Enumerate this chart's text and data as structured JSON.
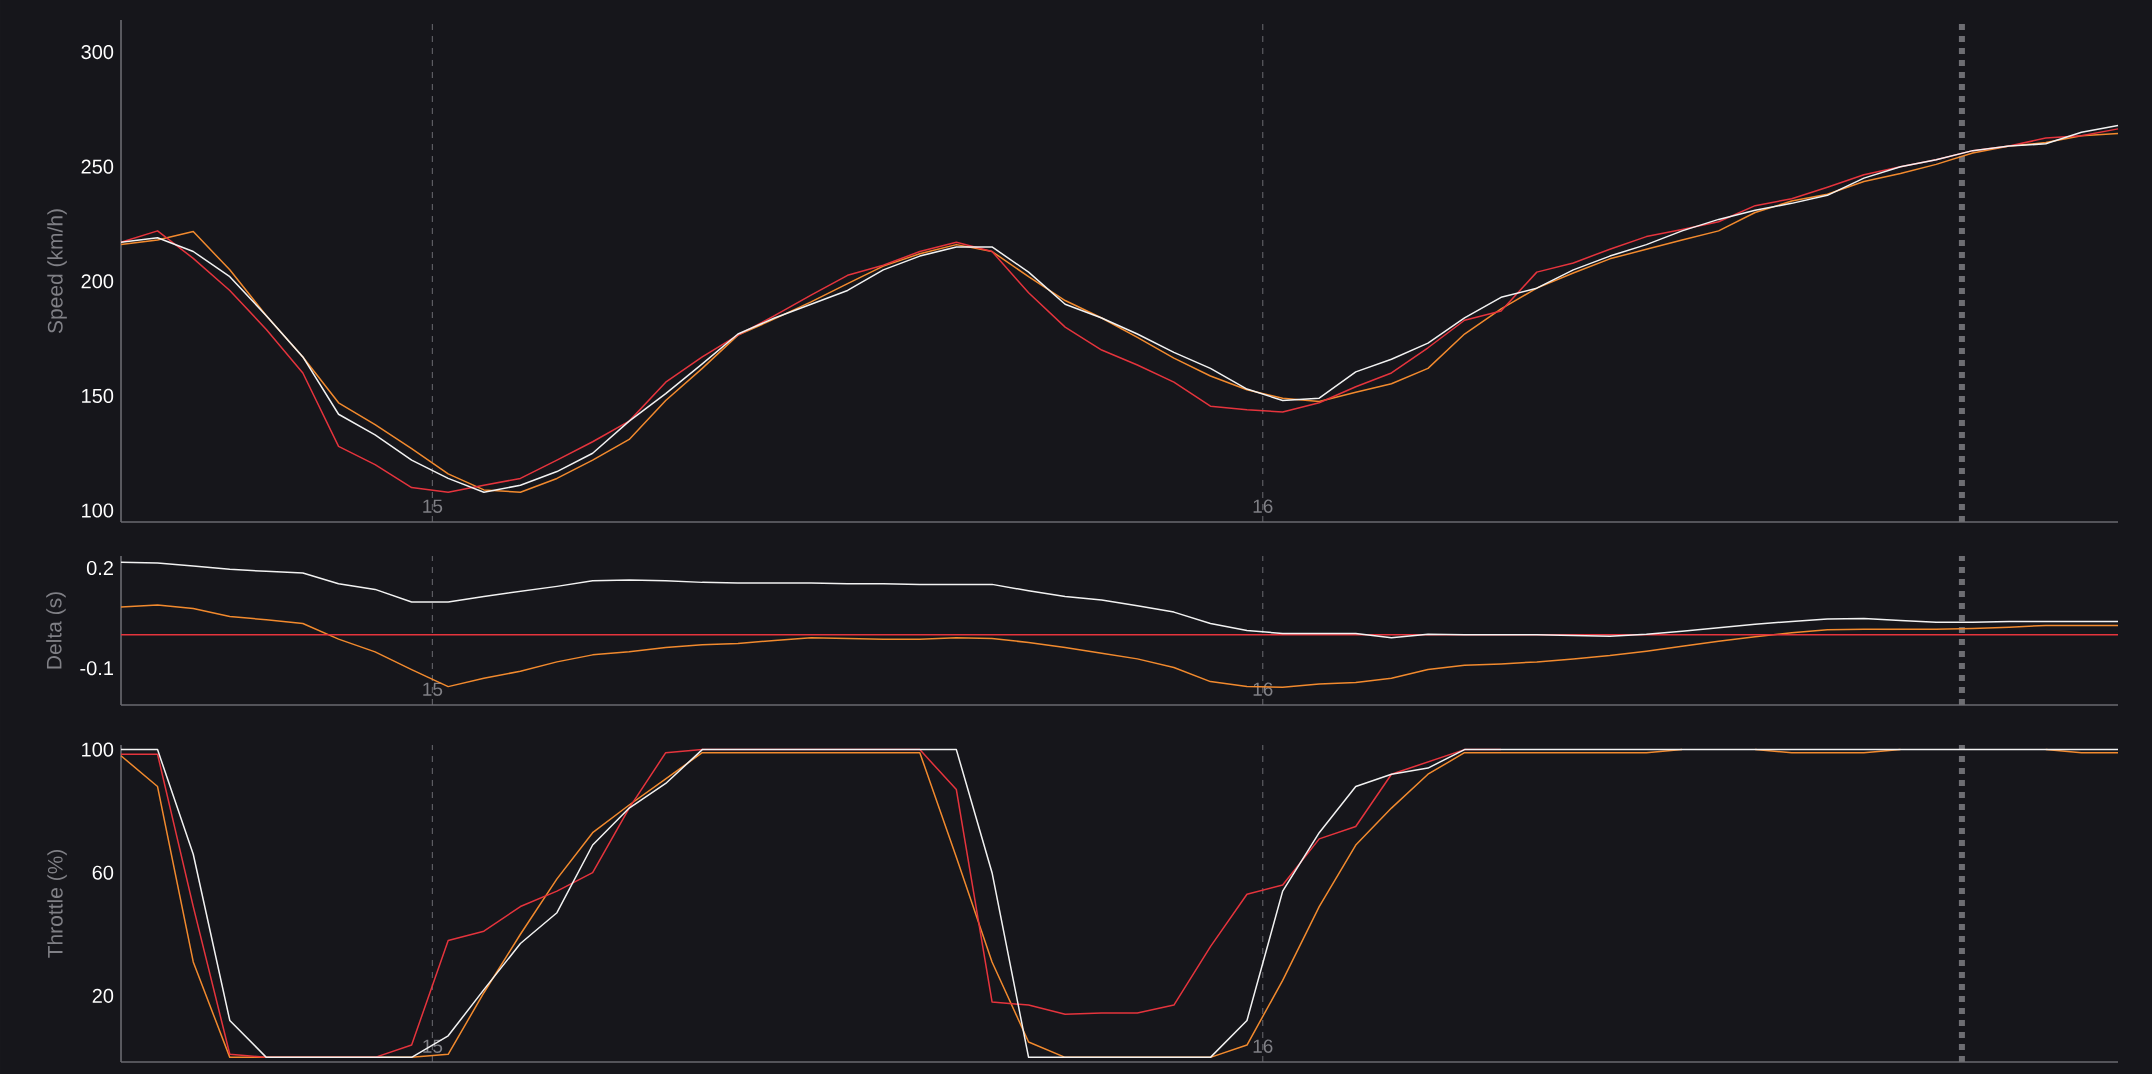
{
  "chart_data": [
    {
      "type": "line",
      "ylabel": "Speed (km/h)",
      "x": [
        14.625,
        14.669,
        14.712,
        14.756,
        14.8,
        14.844,
        14.887,
        14.931,
        14.975,
        15.019,
        15.062,
        15.106,
        15.15,
        15.193,
        15.237,
        15.281,
        15.325,
        15.368,
        15.412,
        15.456,
        15.5,
        15.543,
        15.587,
        15.631,
        15.674,
        15.718,
        15.762,
        15.806,
        15.849,
        15.893,
        15.937,
        15.981,
        16.024,
        16.068,
        16.112,
        16.155,
        16.199,
        16.243,
        16.287,
        16.33,
        16.374,
        16.418,
        16.462,
        16.505,
        16.549,
        16.593,
        16.637,
        16.68,
        16.724,
        16.768,
        16.811,
        16.855,
        16.899,
        16.943,
        16.986,
        17.03
      ],
      "xlim": [
        14.625,
        17.03
      ],
      "xticks": [
        15,
        16
      ],
      "grid": "x",
      "ylim": [
        95,
        314
      ],
      "yticks": [
        100,
        150,
        200,
        250,
        300
      ],
      "series": [
        {
          "color": "#f28a2e",
          "values": [
            216,
            218,
            221.7,
            205,
            185,
            167,
            147,
            137.5,
            127,
            116,
            109,
            108,
            114,
            122,
            131,
            148,
            162,
            176.5,
            183.6,
            191,
            199,
            206.6,
            212,
            216,
            213,
            202,
            191.6,
            184,
            175.5,
            166.5,
            158.7,
            152.7,
            149,
            147.6,
            151.6,
            155.3,
            162,
            177,
            188,
            197,
            203.6,
            209.8,
            214,
            218,
            222,
            230,
            235,
            238,
            243.5,
            247,
            251,
            256,
            259,
            260.5,
            263.5,
            264.5
          ]
        },
        {
          "color": "#e5343d",
          "values": [
            217,
            222,
            210,
            196,
            179,
            160,
            128,
            120,
            110,
            108,
            111,
            114,
            122,
            130,
            139,
            156,
            167,
            176.5,
            185,
            194,
            202.6,
            207,
            213,
            217,
            213,
            195,
            180,
            170,
            163.5,
            156,
            145.5,
            144,
            143,
            147,
            154,
            160,
            171,
            183,
            187,
            204,
            208,
            214,
            219.5,
            222.6,
            226,
            233,
            236,
            241,
            246.5,
            250,
            253,
            257,
            259,
            262.5,
            263.5,
            266.5
          ]
        },
        {
          "color": "#f2f2f2",
          "values": [
            217,
            219,
            213,
            202,
            185,
            167,
            142,
            133,
            122,
            114,
            108,
            111,
            117,
            125,
            139,
            151,
            164,
            177,
            184,
            190,
            196,
            205,
            211,
            215,
            215,
            204,
            190,
            184,
            177,
            169,
            162,
            153,
            148,
            149,
            160.5,
            166,
            173,
            184,
            193,
            197,
            205,
            211,
            216,
            222,
            227,
            231,
            234,
            237.5,
            245,
            250,
            253,
            257,
            259,
            260,
            265,
            268
          ]
        }
      ],
      "ref_lines": [
        {
          "axis": "x",
          "value": 16.842,
          "color": "#6e6e73",
          "line_style": "dotted"
        }
      ]
    },
    {
      "type": "line",
      "ylabel": "Delta (s)",
      "x": [
        14.625,
        14.669,
        14.712,
        14.756,
        14.8,
        14.844,
        14.887,
        14.931,
        14.975,
        15.019,
        15.062,
        15.106,
        15.15,
        15.193,
        15.237,
        15.281,
        15.325,
        15.368,
        15.412,
        15.456,
        15.5,
        15.543,
        15.587,
        15.631,
        15.674,
        15.718,
        15.762,
        15.806,
        15.849,
        15.893,
        15.937,
        15.981,
        16.024,
        16.068,
        16.112,
        16.155,
        16.199,
        16.243,
        16.287,
        16.33,
        16.374,
        16.418,
        16.462,
        16.505,
        16.549,
        16.593,
        16.637,
        16.68,
        16.724,
        16.768,
        16.811,
        16.855,
        16.899,
        16.943,
        16.986,
        17.03
      ],
      "xlim": [
        14.625,
        17.03
      ],
      "xticks": [
        15,
        16
      ],
      "grid": "x",
      "ylim": [
        -0.21,
        0.236
      ],
      "yticks": [
        -0.1,
        0.2
      ],
      "series": [
        {
          "color": "#f28a2e",
          "values": [
            0.083,
            0.089,
            0.079,
            0.055,
            0.045,
            0.034,
            -0.013,
            -0.051,
            -0.104,
            -0.155,
            -0.13,
            -0.109,
            -0.081,
            -0.06,
            -0.051,
            -0.038,
            -0.03,
            -0.026,
            -0.017,
            -0.009,
            -0.011,
            -0.013,
            -0.013,
            -0.009,
            -0.011,
            -0.023,
            -0.038,
            -0.055,
            -0.072,
            -0.098,
            -0.14,
            -0.155,
            -0.157,
            -0.147,
            -0.143,
            -0.13,
            -0.104,
            -0.091,
            -0.087,
            -0.081,
            -0.072,
            -0.062,
            -0.049,
            -0.034,
            -0.019,
            -0.006,
            0.006,
            0.015,
            0.017,
            0.017,
            0.017,
            0.019,
            0.023,
            0.028,
            0.028,
            0.028
          ]
        },
        {
          "color": "#e5343d",
          "values": [
            0,
            0,
            0,
            0,
            0,
            0,
            0,
            0,
            0,
            0,
            0,
            0,
            0,
            0,
            0,
            0,
            0,
            0,
            0,
            0,
            0,
            0,
            0,
            0,
            0,
            0,
            0,
            0,
            0,
            0,
            0,
            0,
            0,
            0,
            0,
            0,
            0,
            0,
            0,
            0,
            0,
            0,
            0,
            0,
            0,
            0,
            0,
            0,
            0,
            0,
            0,
            0,
            0,
            0,
            0,
            0
          ]
        },
        {
          "color": "#f2f2f2",
          "values": [
            0.217,
            0.215,
            0.206,
            0.196,
            0.19,
            0.185,
            0.153,
            0.136,
            0.098,
            0.098,
            0.115,
            0.13,
            0.145,
            0.162,
            0.164,
            0.162,
            0.157,
            0.155,
            0.155,
            0.155,
            0.153,
            0.153,
            0.151,
            0.151,
            0.151,
            0.132,
            0.115,
            0.104,
            0.087,
            0.068,
            0.034,
            0.013,
            0.004,
            0.004,
            0.004,
            -0.009,
            0.002,
            0,
            0,
            0,
            -0.002,
            -0.004,
            0.002,
            0.011,
            0.021,
            0.032,
            0.04,
            0.047,
            0.049,
            0.043,
            0.038,
            0.038,
            0.04,
            0.04,
            0.04,
            0.04
          ]
        }
      ],
      "ref_lines": [
        {
          "axis": "x",
          "value": 16.842,
          "color": "#6e6e73",
          "line_style": "dotted"
        }
      ]
    },
    {
      "type": "line",
      "ylabel": "Throttle (%)",
      "x": [
        14.625,
        14.669,
        14.712,
        14.756,
        14.8,
        14.844,
        14.887,
        14.931,
        14.975,
        15.019,
        15.062,
        15.106,
        15.15,
        15.193,
        15.237,
        15.281,
        15.325,
        15.368,
        15.412,
        15.456,
        15.5,
        15.543,
        15.587,
        15.631,
        15.674,
        15.718,
        15.762,
        15.806,
        15.849,
        15.893,
        15.937,
        15.981,
        16.024,
        16.068,
        16.112,
        16.155,
        16.199,
        16.243,
        16.287,
        16.33,
        16.374,
        16.418,
        16.462,
        16.505,
        16.549,
        16.593,
        16.637,
        16.68,
        16.724,
        16.768,
        16.811,
        16.855,
        16.899,
        16.943,
        16.986,
        17.03
      ],
      "xlim": [
        14.625,
        17.03
      ],
      "xticks": [
        15,
        16
      ],
      "grid": "x",
      "ylim": [
        -1.5,
        101.5
      ],
      "yticks": [
        20,
        60,
        100
      ],
      "series": [
        {
          "color": "#f28a2e",
          "values": [
            98,
            88,
            31,
            0,
            0,
            0,
            0,
            0,
            0,
            1,
            21,
            40,
            58,
            73,
            82,
            90.5,
            99,
            99,
            99,
            99,
            99,
            99,
            99,
            65,
            31,
            5,
            0,
            0,
            0,
            0,
            0,
            4,
            25,
            49,
            69,
            81,
            92,
            99,
            99,
            99,
            99,
            99,
            99,
            100,
            null,
            100,
            99,
            99,
            99,
            100,
            null,
            null,
            null,
            100,
            99,
            99
          ]
        },
        {
          "color": "#e5343d",
          "values": [
            98.5,
            98.5,
            49,
            1,
            0,
            0,
            0,
            0,
            4,
            38,
            41,
            49,
            54,
            60,
            81,
            99,
            100,
            100,
            100,
            100,
            100,
            100,
            100,
            87,
            18,
            17,
            14,
            14.4,
            14.4,
            17,
            36,
            53,
            56,
            71,
            75,
            92,
            96,
            100,
            100,
            null,
            null,
            null,
            null,
            null,
            null,
            null,
            null,
            null,
            null,
            null,
            null,
            null,
            null,
            null,
            null,
            null
          ]
        },
        {
          "color": "#f2f2f2",
          "values": [
            100,
            100,
            66,
            12,
            0,
            0,
            0,
            0,
            0,
            7,
            22,
            37,
            47,
            69,
            81,
            89,
            100,
            100,
            100,
            100,
            100,
            100,
            100,
            100,
            60,
            0,
            0,
            0,
            0,
            0,
            0,
            12,
            54,
            73,
            88,
            92,
            94,
            100,
            100,
            100,
            100,
            100,
            100,
            100,
            100,
            100,
            100,
            100,
            100,
            100,
            100,
            100,
            100,
            100,
            100,
            100
          ]
        }
      ],
      "ref_lines": [
        {
          "axis": "x",
          "value": 16.842,
          "color": "#6e6e73",
          "line_style": "dotted"
        }
      ]
    }
  ]
}
